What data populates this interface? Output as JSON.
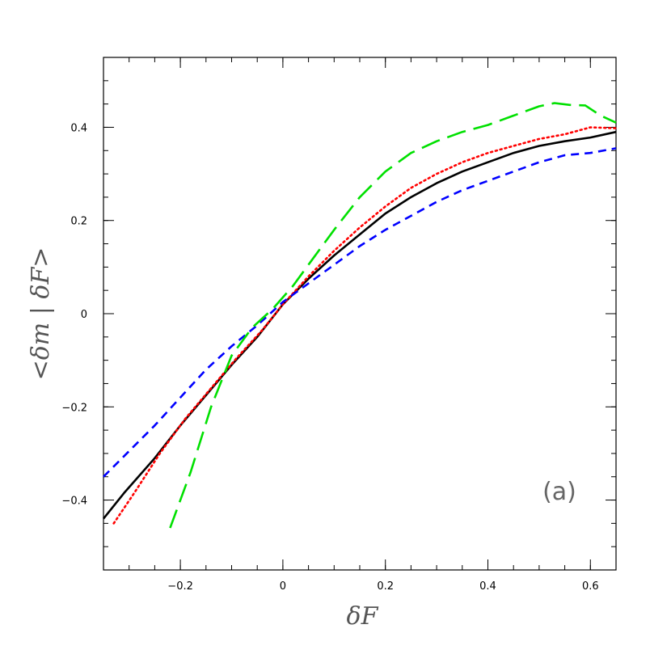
{
  "chart_data": {
    "type": "line",
    "title": "",
    "xlabel": "δF",
    "ylabel": "<δm | δF>",
    "annotation": "(a)",
    "xlim": [
      -0.35,
      0.65
    ],
    "ylim": [
      -0.55,
      0.55
    ],
    "grid": false,
    "x_ticks": [
      -0.2,
      0,
      0.2,
      0.4,
      0.6
    ],
    "x_tick_labels": [
      "−0.2",
      "0",
      "0.2",
      "0.4",
      "0.6"
    ],
    "y_ticks": [
      -0.4,
      -0.2,
      0,
      0.2,
      0.4
    ],
    "y_tick_labels": [
      "−0.4",
      "−0.2",
      "0",
      "0.2",
      "0.4"
    ],
    "series": [
      {
        "style": "solid",
        "color": "#000000",
        "x": [
          -0.35,
          -0.31,
          -0.25,
          -0.2,
          -0.15,
          -0.1,
          -0.05,
          0.0,
          0.05,
          0.1,
          0.15,
          0.2,
          0.25,
          0.3,
          0.35,
          0.4,
          0.45,
          0.5,
          0.55,
          0.6,
          0.65
        ],
        "y": [
          -0.44,
          -0.385,
          -0.31,
          -0.24,
          -0.175,
          -0.11,
          -0.05,
          0.02,
          0.075,
          0.125,
          0.17,
          0.215,
          0.25,
          0.28,
          0.305,
          0.325,
          0.345,
          0.36,
          0.37,
          0.378,
          0.39
        ]
      },
      {
        "style": "dotted",
        "color": "#ff0000",
        "x": [
          -0.33,
          -0.29,
          -0.24,
          -0.19,
          -0.14,
          -0.09,
          -0.04,
          0.0,
          0.05,
          0.1,
          0.15,
          0.2,
          0.25,
          0.3,
          0.35,
          0.4,
          0.45,
          0.5,
          0.55,
          0.6,
          0.65
        ],
        "y": [
          -0.45,
          -0.385,
          -0.3,
          -0.225,
          -0.16,
          -0.095,
          -0.035,
          0.02,
          0.08,
          0.135,
          0.185,
          0.23,
          0.27,
          0.3,
          0.325,
          0.345,
          0.36,
          0.375,
          0.385,
          0.4,
          0.398
        ]
      },
      {
        "style": "dashed",
        "color": "#0000ff",
        "x": [
          -0.35,
          -0.3,
          -0.25,
          -0.2,
          -0.15,
          -0.1,
          -0.05,
          0.0,
          0.05,
          0.1,
          0.15,
          0.2,
          0.25,
          0.3,
          0.35,
          0.4,
          0.45,
          0.5,
          0.55,
          0.6,
          0.65
        ],
        "y": [
          -0.35,
          -0.295,
          -0.24,
          -0.18,
          -0.12,
          -0.07,
          -0.025,
          0.025,
          0.065,
          0.105,
          0.145,
          0.18,
          0.21,
          0.24,
          0.265,
          0.285,
          0.305,
          0.325,
          0.34,
          0.345,
          0.355
        ]
      },
      {
        "style": "longdash",
        "color": "#00e000",
        "x": [
          -0.22,
          -0.18,
          -0.14,
          -0.1,
          -0.06,
          -0.02,
          0.02,
          0.06,
          0.1,
          0.15,
          0.2,
          0.25,
          0.3,
          0.35,
          0.4,
          0.45,
          0.5,
          0.53,
          0.56,
          0.59,
          0.62,
          0.65
        ],
        "y": [
          -0.46,
          -0.34,
          -0.2,
          -0.09,
          -0.03,
          0.01,
          0.06,
          0.12,
          0.18,
          0.25,
          0.305,
          0.345,
          0.37,
          0.39,
          0.405,
          0.425,
          0.445,
          0.452,
          0.448,
          0.447,
          0.425,
          0.41
        ]
      }
    ]
  }
}
